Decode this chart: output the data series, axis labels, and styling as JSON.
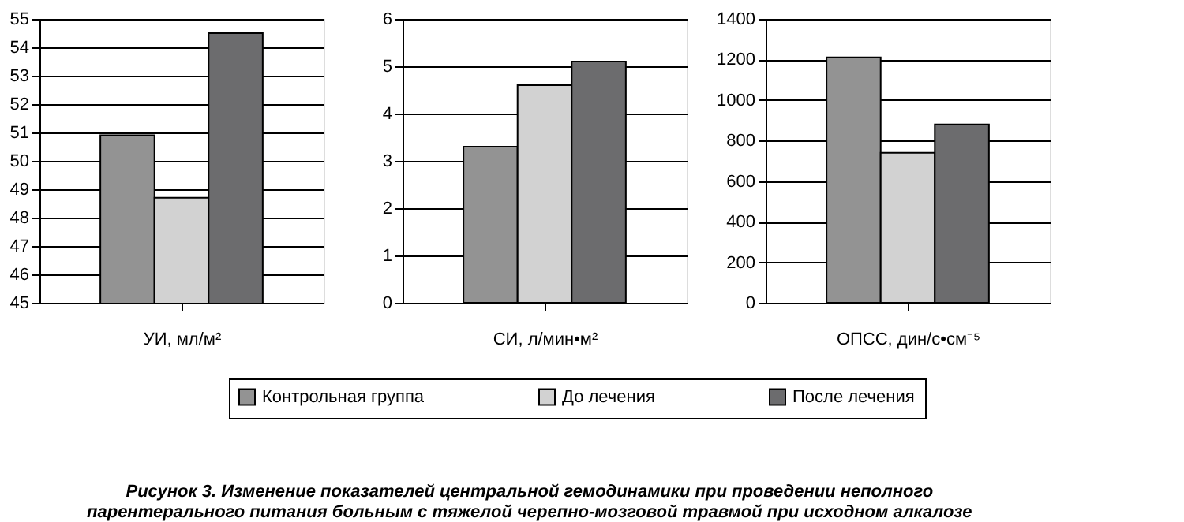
{
  "chart_data": [
    {
      "type": "bar",
      "categories": [
        null
      ],
      "xlabel": "УИ, мл/м²",
      "ylim": [
        45,
        55
      ],
      "yticks": [
        45,
        46,
        47,
        48,
        49,
        50,
        51,
        52,
        53,
        54,
        55
      ],
      "grid": "y",
      "legend": "bottom",
      "series": [
        {
          "name": "Контрольная группа",
          "color": "#939393",
          "values": [
            50.9
          ]
        },
        {
          "name": "До лечения",
          "color": "#d2d2d2",
          "values": [
            48.7
          ]
        },
        {
          "name": "После лечения",
          "color": "#6c6c6e",
          "values": [
            54.5
          ]
        }
      ],
      "annotations": [
        "Рисунок 3. Изменение показателей центральной гемодинамики при проведении неполного",
        "парентерального питания больным с тяжелой черепно-мозговой травмой при исходном алкалозе"
      ]
    },
    {
      "type": "bar",
      "categories": [
        null
      ],
      "xlabel": "СИ,  л/мин•м²",
      "ylim": [
        0,
        6
      ],
      "yticks": [
        0,
        1,
        2,
        3,
        4,
        5,
        6
      ],
      "grid": "y",
      "series": [
        {
          "color": "#939393",
          "values": [
            3.3
          ]
        },
        {
          "color": "#d2d2d2",
          "values": [
            4.6
          ]
        },
        {
          "color": "#6c6c6e",
          "values": [
            5.1
          ]
        }
      ]
    },
    {
      "type": "bar",
      "categories": [
        null
      ],
      "xlabel": "ОПСС, дин/с•см⁻⁵",
      "ylim": [
        0,
        1400
      ],
      "yticks": [
        0,
        200,
        400,
        600,
        800,
        1000,
        1200,
        1400
      ],
      "grid": "y",
      "series": [
        {
          "color": "#939393",
          "values": [
            1210
          ]
        },
        {
          "color": "#d2d2d2",
          "values": [
            740
          ]
        },
        {
          "color": "#6c6c6e",
          "values": [
            880
          ]
        }
      ]
    }
  ]
}
